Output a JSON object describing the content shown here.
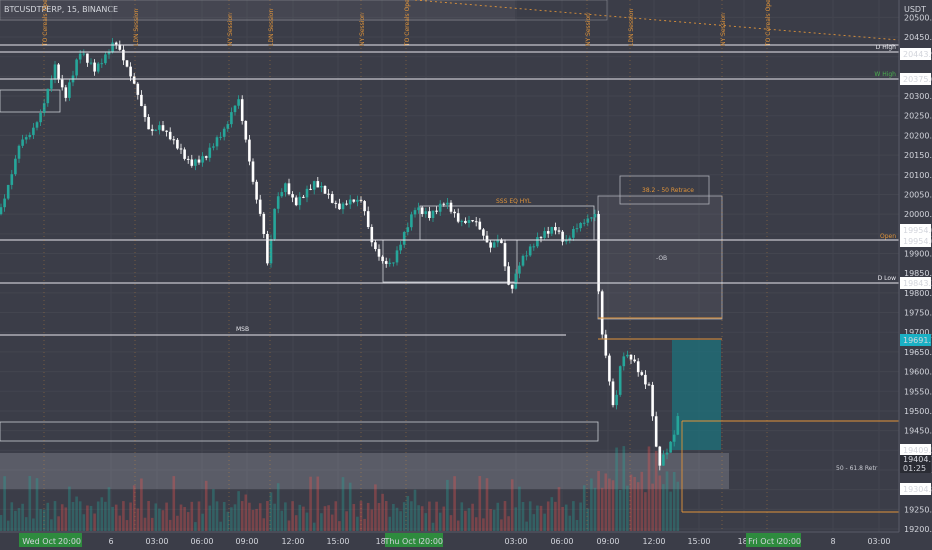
{
  "symbol": "BTCUSDTPERP, 15, BINANCE",
  "currency": "USDT",
  "colors": {
    "bg": "#3b3d48",
    "up": "#26a69a",
    "down": "#ffffff",
    "orange": "#e0943a",
    "teal": "#1f6e78",
    "green_tag": "#2e8b3e",
    "price_tag": "#1ab0c4"
  },
  "price_axis": {
    "ticks": [
      "20500.0",
      "20450.0",
      "20400.0",
      "20350.0",
      "20300.0",
      "20250.0",
      "20200.0",
      "20150.0",
      "20100.0",
      "20050.0",
      "20000.0",
      "19950.0",
      "19900.0",
      "19850.0",
      "19800.0",
      "19750.0",
      "19700.0",
      "19650.0",
      "19600.0",
      "19550.0",
      "19500.0",
      "19450.0",
      "19400.0",
      "19350.0",
      "19300.0",
      "19250.0",
      "19200.0"
    ]
  },
  "time_axis": {
    "labels": [
      "6",
      "03:00",
      "06:00",
      "09:00",
      "12:00",
      "15:00",
      "18:",
      "7",
      "03:00",
      "06:00",
      "09:00",
      "12:00",
      "15:00",
      "18:",
      "8",
      "03:00"
    ],
    "date_tags": [
      "Wed Oct 05",
      "20:00",
      "Thu Oct 06",
      "20:00",
      "Fri Oct 07",
      "20:00"
    ]
  },
  "price_tags": {
    "d_high": "20443.9",
    "w_high": "20375.0",
    "open_a": "19954.0",
    "open_b": "19954.0",
    "d_low": "19843.3",
    "current": "19691.7",
    "p1": "19409.5",
    "p2": "19404.7",
    "countdown": "01:25",
    "p3": "19304.8"
  },
  "level_labels": {
    "d_high": "D High",
    "w_high": "W High",
    "open": "Open",
    "d_low": "D Low",
    "msb": "MSB",
    "ssl": "SSS EQ HYL",
    "retrace": "38.2 - 50 Retrace",
    "ob": "-OB",
    "fib": "50 - 61.8 Retr"
  },
  "sessions": [
    "TO Cereals Open",
    "LDN Session",
    "NY Session",
    "LDN Session",
    "NY Session",
    "TO Cereals Open",
    "NY Session",
    "LDN Session",
    "NY Session",
    "TO Cereals Open"
  ]
}
